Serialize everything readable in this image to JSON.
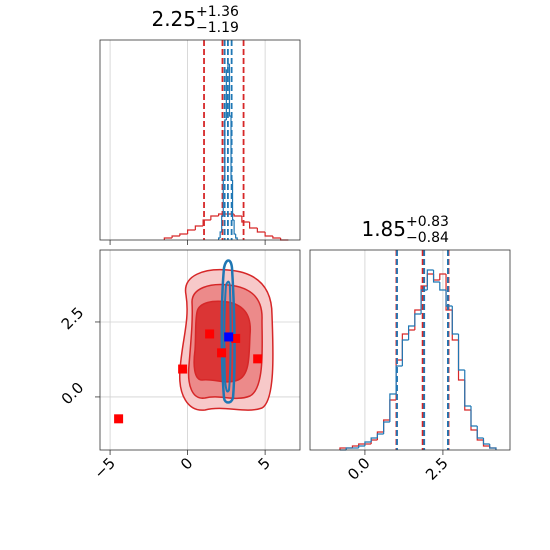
{
  "chart_data": [
    {
      "type": "histogram",
      "title": "2.25",
      "title_sup": "+1.36",
      "title_sub": "−1.19",
      "xlim": [
        -5.65,
        7.25
      ],
      "ylim": [
        0,
        100
      ],
      "series": [
        {
          "color": "#d62728",
          "bins": [
            -1.5,
            -1.0,
            -0.5,
            0.0,
            0.5,
            1.0,
            1.5,
            2.0,
            2.5,
            3.0,
            3.5,
            4.0,
            4.5,
            5.0,
            5.5,
            6.0,
            6.5
          ],
          "values": [
            1,
            2,
            3,
            5,
            7,
            10,
            12,
            13,
            13,
            12,
            9,
            6,
            4,
            2,
            1,
            0
          ],
          "quantiles": [
            1.06,
            2.25,
            3.61
          ]
        },
        {
          "color": "#1f77b4",
          "bins": [
            2.0,
            2.1,
            2.2,
            2.3,
            2.4,
            2.5,
            2.6,
            2.7,
            2.8,
            2.9,
            3.0,
            3.1,
            3.2
          ],
          "values": [
            1,
            4,
            12,
            30,
            60,
            85,
            88,
            62,
            30,
            10,
            3,
            1
          ],
          "quantiles": [
            2.39,
            2.6,
            2.84
          ]
        }
      ]
    },
    {
      "type": "scatter",
      "xlim": [
        -5.65,
        7.25
      ],
      "ylim": [
        -1.77,
        4.9
      ],
      "xticks": [
        {
          "value": -5,
          "label": "−5"
        },
        0,
        5
      ],
      "yticks": [
        {
          "value": 0,
          "label": "0.0"
        },
        2.5
      ],
      "grid": true,
      "series": [
        {
          "color": "#ff0000",
          "x": [
            -4.45,
            -0.32,
            1.42,
            2.19,
            3.1,
            4.52
          ],
          "y": [
            -0.73,
            0.93,
            2.1,
            1.47,
            1.95,
            1.27
          ]
        },
        {
          "color": "#0000ff",
          "x": [
            2.65
          ],
          "y": [
            2.0
          ]
        }
      ]
    },
    {
      "type": "histogram",
      "title": "1.85",
      "title_sup": "+0.83",
      "title_sub": "−0.84",
      "xlim": [
        -1.76,
        4.65
      ],
      "ylim": [
        0,
        100
      ],
      "xticks": [
        {
          "value": 0,
          "label": "0.0"
        },
        2.5
      ],
      "series": [
        {
          "color": "#d62728",
          "bins": [
            -0.8,
            -0.6,
            -0.4,
            -0.2,
            0.0,
            0.2,
            0.4,
            0.6,
            0.8,
            1.0,
            1.2,
            1.4,
            1.6,
            1.8,
            2.0,
            2.2,
            2.4,
            2.6,
            2.8,
            3.0,
            3.2,
            3.4,
            3.6,
            3.8,
            4.0,
            4.2
          ],
          "values": [
            1,
            1,
            2,
            3,
            3,
            5,
            9,
            15,
            25,
            45,
            58,
            60,
            70,
            82,
            88,
            85,
            88,
            70,
            55,
            35,
            20,
            10,
            5,
            2,
            1
          ],
          "quantiles": [
            1.01,
            1.85,
            2.68
          ]
        },
        {
          "color": "#1f77b4",
          "bins": [
            -0.8,
            -0.6,
            -0.4,
            -0.2,
            0.0,
            0.2,
            0.4,
            0.6,
            0.8,
            1.0,
            1.2,
            1.4,
            1.6,
            1.8,
            2.0,
            2.2,
            2.4,
            2.6,
            2.8,
            3.0,
            3.2,
            3.4,
            3.6,
            3.8,
            4.0,
            4.2
          ],
          "values": [
            0,
            1,
            1,
            2,
            4,
            6,
            8,
            14,
            28,
            42,
            55,
            62,
            68,
            80,
            90,
            84,
            80,
            72,
            58,
            40,
            22,
            12,
            6,
            3,
            1
          ],
          "quantiles": [
            1.03,
            1.9,
            2.66
          ]
        }
      ]
    }
  ]
}
